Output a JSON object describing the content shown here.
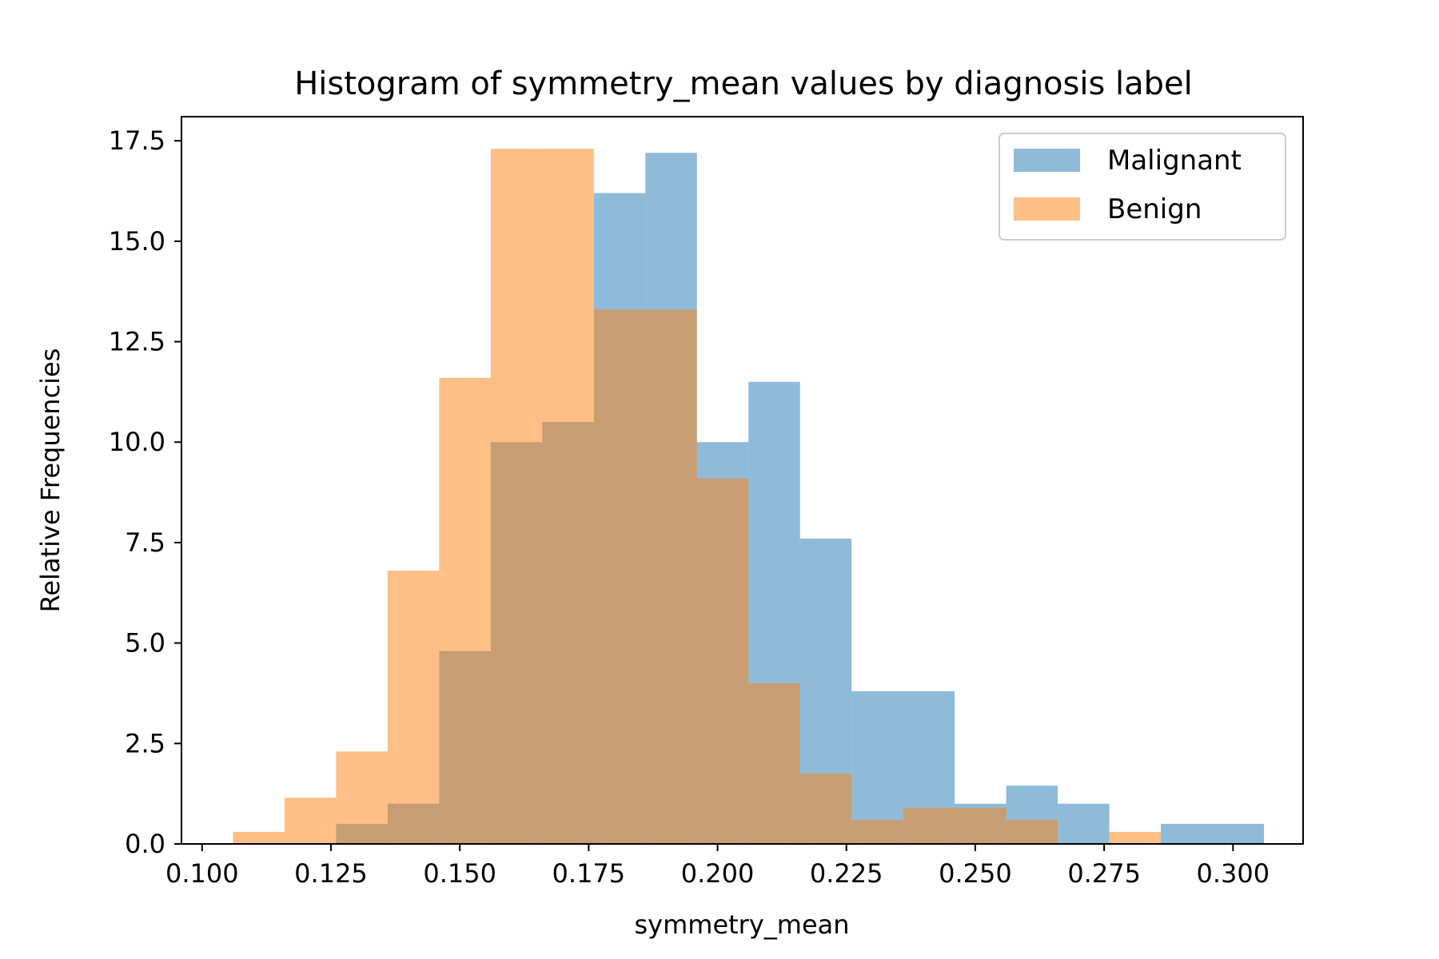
{
  "colors": {
    "malignant": "#1f77b4",
    "benign": "#ff7f0e",
    "bar_alpha": 0.5,
    "axis": "#000000",
    "legend_border": "#cccccc"
  },
  "chart_data": {
    "type": "bar",
    "title": "Histogram of symmetry_mean values by diagnosis label",
    "xlabel": "symmetry_mean",
    "ylabel": "Relative Frequencies",
    "xlim": [
      0.096,
      0.3136
    ],
    "ylim": [
      0,
      18.1
    ],
    "xticks": [
      0.1,
      0.125,
      0.15,
      0.175,
      0.2,
      0.225,
      0.25,
      0.275,
      0.3
    ],
    "xtick_labels": [
      "0.100",
      "0.125",
      "0.150",
      "0.175",
      "0.200",
      "0.225",
      "0.250",
      "0.275",
      "0.300"
    ],
    "yticks": [
      0,
      2.5,
      5,
      7.5,
      10,
      12.5,
      15,
      17.5
    ],
    "ytick_labels": [
      "0.0",
      "2.5",
      "5.0",
      "7.5",
      "10.0",
      "12.5",
      "15.0",
      "17.5"
    ],
    "legend_placement": "top-right",
    "bin_edges": [
      0.106,
      0.116,
      0.126,
      0.136,
      0.146,
      0.156,
      0.166,
      0.176,
      0.186,
      0.196,
      0.206,
      0.216,
      0.226,
      0.236,
      0.246,
      0.256,
      0.266,
      0.276,
      0.286,
      0.296,
      0.306
    ],
    "series": [
      {
        "name": "Malignant",
        "values": [
          0,
          0,
          0.5,
          1.0,
          4.8,
          10.0,
          10.5,
          16.2,
          17.2,
          10.0,
          11.5,
          7.6,
          3.8,
          3.8,
          1.0,
          1.45,
          1.0,
          0,
          0.5,
          0.5
        ]
      },
      {
        "name": "Benign",
        "values": [
          0.3,
          1.15,
          2.3,
          6.8,
          11.6,
          17.3,
          17.3,
          13.3,
          13.3,
          9.1,
          4.0,
          1.75,
          0.6,
          0.9,
          0.9,
          0.6,
          0,
          0.3,
          0,
          0
        ]
      }
    ]
  }
}
